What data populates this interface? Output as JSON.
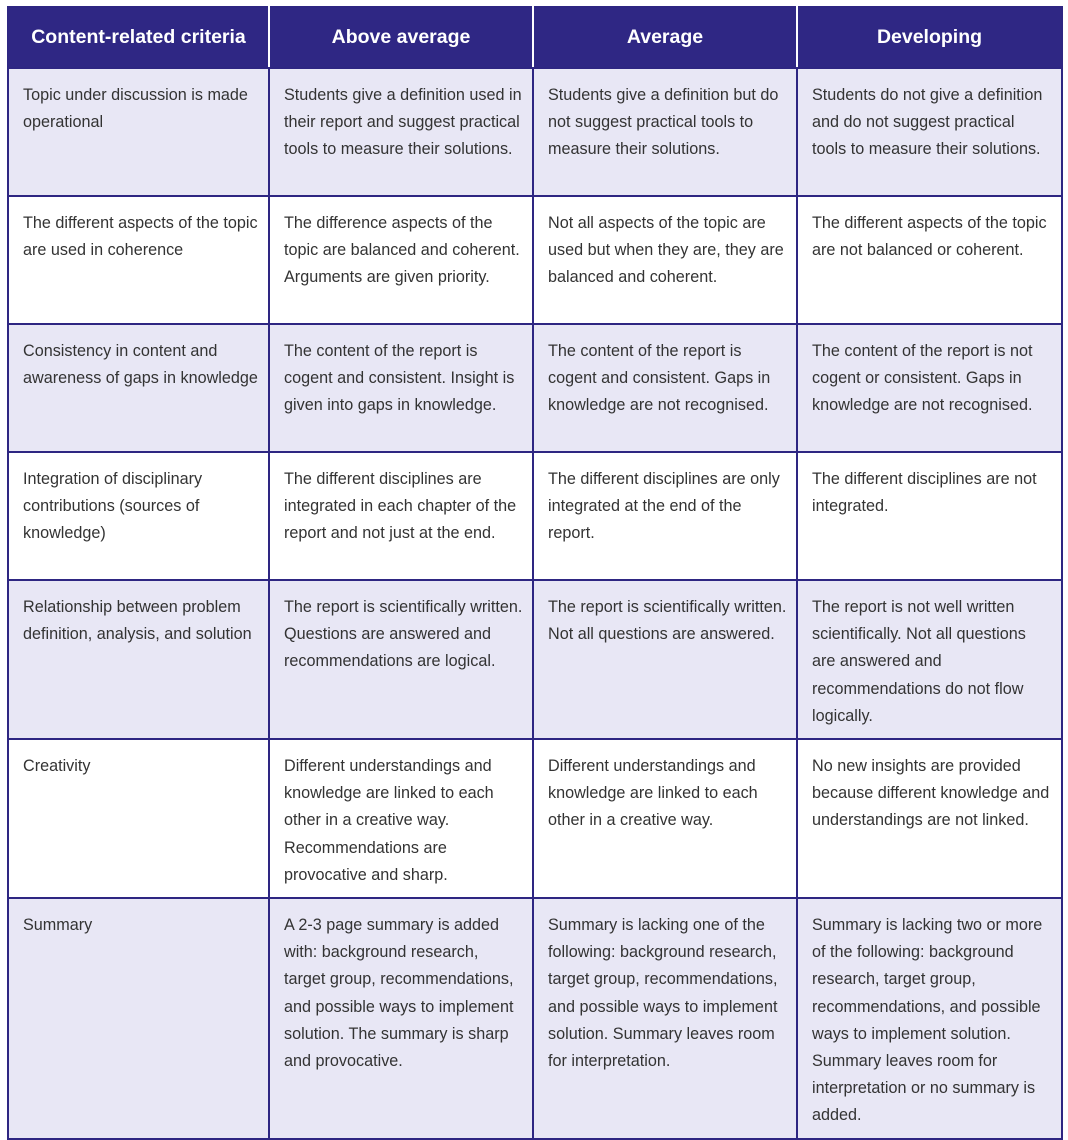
{
  "header": [
    "Content-related criteria",
    "Above average",
    "Average",
    "Developing"
  ],
  "rows": [
    {
      "criteria": "Topic under discussion is made operational",
      "above": "Students give a definition used in their report and suggest practical tools to measure their solutions.",
      "average": "Students give a definition but do not suggest practical tools to measure their solutions.",
      "developing": "Students do not give a definition and do not suggest practical tools to measure their solutions."
    },
    {
      "criteria": "The different aspects of the topic are used in coherence",
      "above": "The difference aspects of the topic are balanced and coherent. Arguments are given priority.",
      "average": "Not all aspects of the topic are used but when they are, they are balanced and coherent.",
      "developing": "The different aspects of the topic are not balanced or coherent."
    },
    {
      "criteria": "Consistency in content and awareness of gaps in knowledge",
      "above": "The content of the report is cogent and consistent. Insight is given into gaps in knowledge.",
      "average": "The content of the report is cogent and consistent. Gaps in knowledge are not recognised.",
      "developing": "The content of the report is not cogent or consistent. Gaps in knowledge are not recognised."
    },
    {
      "criteria": "Integration of disciplinary contributions (sources of knowledge)",
      "above": "The different disciplines are integrated in each chapter of the report and not just at the end.",
      "average": "The different disciplines are only integrated at the end of the report.",
      "developing": "The different disciplines are not integrated."
    },
    {
      "criteria": "Relationship between problem definition, analysis, and solution",
      "above": "The report is scientifically written. Questions are answered and recommendations are logical.",
      "average": "The report is scientifically written. Not all questions are answered.",
      "developing": "The report is not well written scientifically. Not all questions are answered and recommendations do not flow logically."
    },
    {
      "criteria": "Creativity",
      "above": "Different understandings and knowledge are linked to each other in a creative way. Recommendations are provocative and sharp.",
      "average": "Different understandings and knowledge are linked to each other in a creative way.",
      "developing": "No new insights are provided because different knowledge and understandings are not linked."
    },
    {
      "criteria": "Summary",
      "above": "A 2-3 page summary is added with: background research, target group, recommendations, and possible ways to implement solution. The summary is sharp and provocative.",
      "average": "Summary is lacking one of the following: background research, target group, recommendations, and possible ways to implement solution. Summary leaves room for interpretation.",
      "developing": "Summary is lacking two or more of the following: background research, target group, recommendations, and possible ways to implement solution. Summary leaves room for interpretation or no summary is added."
    }
  ],
  "colors": {
    "header_bg": "#2f2784",
    "border": "#2e2682",
    "alt_row": "#e8e7f5"
  }
}
